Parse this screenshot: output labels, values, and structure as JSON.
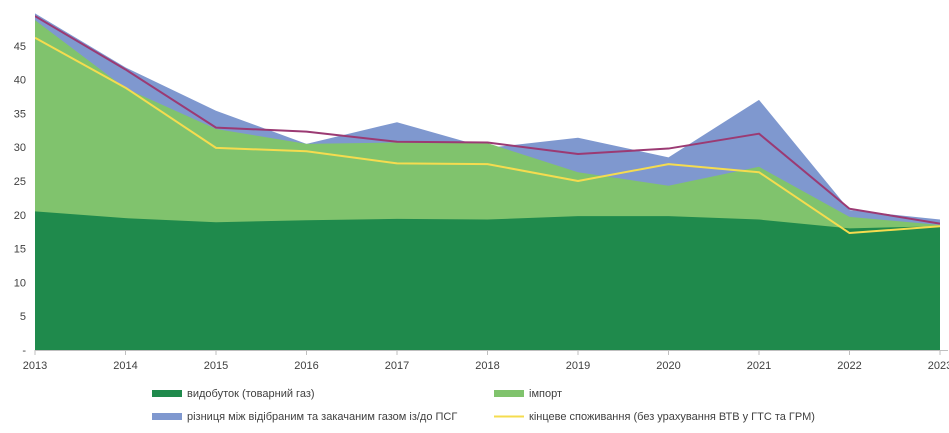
{
  "chart_data": {
    "type": "area",
    "x": [
      "2013",
      "2014",
      "2015",
      "2016",
      "2017",
      "2018",
      "2019",
      "2020",
      "2021",
      "2022",
      "2023"
    ],
    "ylim": [
      0,
      50
    ],
    "yticks": [
      {
        "value": 0,
        "label": "-"
      },
      {
        "value": 5,
        "label": "5"
      },
      {
        "value": 10,
        "label": "10"
      },
      {
        "value": 15,
        "label": "15"
      },
      {
        "value": 20,
        "label": "20"
      },
      {
        "value": 25,
        "label": "25"
      },
      {
        "value": 30,
        "label": "30"
      },
      {
        "value": 35,
        "label": "35"
      },
      {
        "value": 40,
        "label": "40"
      },
      {
        "value": 45,
        "label": "45"
      }
    ],
    "grid": false,
    "legend_position": "bottom",
    "series": [
      {
        "name": "видобуток (товарний газ)",
        "kind": "area",
        "color": "#1f8a4c",
        "values": [
          20.5,
          19.5,
          18.9,
          19.2,
          19.4,
          19.3,
          19.8,
          19.8,
          19.3,
          18.0,
          18.3
        ]
      },
      {
        "name": "імпорт",
        "kind": "area",
        "color": "#80c36d",
        "values": [
          28.3,
          19.2,
          13.8,
          11.3,
          11.3,
          11.3,
          6.5,
          4.5,
          7.8,
          1.7,
          0.2
        ]
      },
      {
        "name": "різниця між відібраним та закачаним газом із/до ПСГ",
        "kind": "area",
        "color": "#7f98cf",
        "values": [
          1.0,
          3.1,
          2.7,
          0.0,
          3.0,
          -0.7,
          5.1,
          4.2,
          9.9,
          1.0,
          0.8
        ]
      },
      {
        "name": "кінцеве споживання (без урахування ВТВ у ГТС та ГРМ)",
        "kind": "line",
        "color": "#f5dc4f",
        "values": [
          46.2,
          38.8,
          29.9,
          29.4,
          27.6,
          27.5,
          25.0,
          27.5,
          26.3,
          17.3,
          18.3
        ]
      },
      {
        "name": "",
        "kind": "line",
        "color": "#9b3a73",
        "values": [
          49.4,
          41.5,
          32.9,
          32.3,
          30.8,
          30.7,
          29.0,
          29.8,
          32.0,
          20.9,
          18.7
        ]
      }
    ]
  }
}
